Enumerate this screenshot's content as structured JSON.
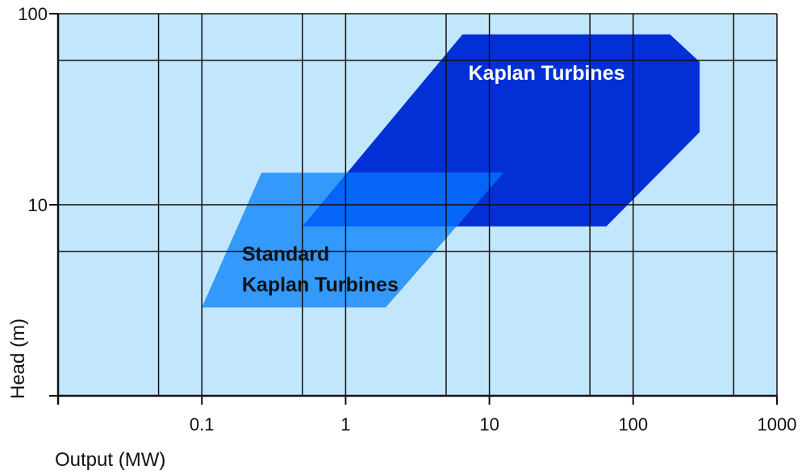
{
  "chart_data": {
    "type": "area",
    "title": "",
    "xlabel": "Output (MW)",
    "ylabel": "Head (m)",
    "x_scale": "log",
    "y_scale": "log",
    "xlim": [
      0.01,
      1000
    ],
    "ylim": [
      1,
      100
    ],
    "x_ticks": [
      {
        "value": 0.1,
        "label": "0.1"
      },
      {
        "value": 1,
        "label": "1"
      },
      {
        "value": 10,
        "label": "10"
      },
      {
        "value": 100,
        "label": "100"
      },
      {
        "value": 1000,
        "label": "1000"
      }
    ],
    "y_ticks": [
      {
        "value": 10,
        "label": "10"
      },
      {
        "value": 100,
        "label": "100"
      }
    ],
    "x_gridlines": [
      0.05,
      0.1,
      0.5,
      1,
      5,
      10,
      50,
      100,
      500
    ],
    "y_gridlines": [
      5.7,
      10,
      57
    ],
    "grid": true,
    "background_color": "#c2e6fb",
    "gridline_color": "#111111",
    "regions": [
      {
        "label_lines": [
          "Kaplan Turbines"
        ],
        "color": "#0330d6",
        "label_color": "#ffffff",
        "label_position": {
          "x": 25,
          "y": 45
        },
        "polygon": [
          {
            "x": 6.5,
            "y": 78
          },
          {
            "x": 180,
            "y": 78
          },
          {
            "x": 290,
            "y": 56
          },
          {
            "x": 290,
            "y": 24
          },
          {
            "x": 65,
            "y": 7.7
          },
          {
            "x": 0.5,
            "y": 7.7
          }
        ]
      },
      {
        "label_lines": [
          "Standard",
          "Kaplan Turbines"
        ],
        "color": "#3399fb",
        "label_color": "#111111",
        "label_position": {
          "x": 0.19,
          "y": 5.1
        },
        "polygon": [
          {
            "x": 0.26,
            "y": 14.7
          },
          {
            "x": 12.5,
            "y": 14.7
          },
          {
            "x": 1.9,
            "y": 2.9
          },
          {
            "x": 0.1,
            "y": 2.9
          }
        ]
      }
    ],
    "overlap_color": "#0565f8"
  }
}
